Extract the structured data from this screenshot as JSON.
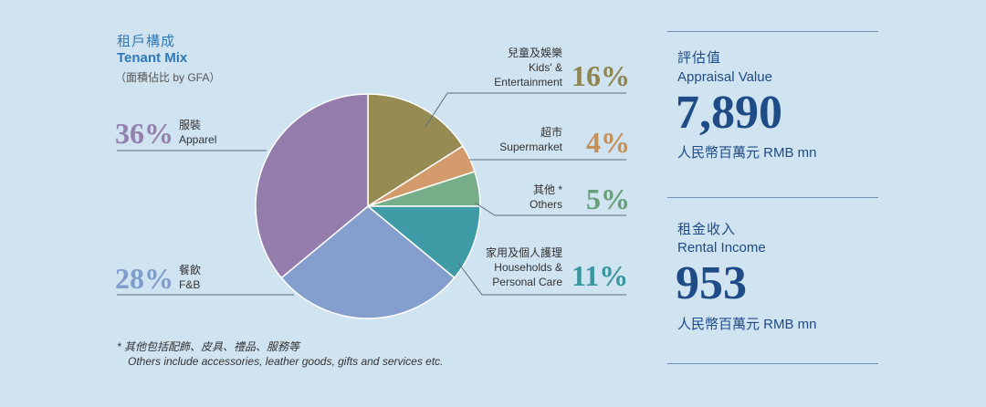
{
  "header": {
    "title_cn": "租戶構成",
    "title_en": "Tenant Mix",
    "subtitle": "（面積佔比 by GFA）"
  },
  "chart_data": {
    "type": "pie",
    "title": "Tenant Mix",
    "slices": [
      {
        "cn": "兒童及娛樂",
        "en": [
          "Kids' &",
          "Entertainment"
        ],
        "pct_label": "16%",
        "value": 16,
        "color": "#968b53",
        "label_color": "#8f8550"
      },
      {
        "cn": "超市",
        "en": [
          "Supermarket"
        ],
        "pct_label": "4%",
        "value": 4,
        "color": "#d39a6c",
        "label_color": "#c58f58"
      },
      {
        "cn": "其他 *",
        "en": [
          "Others"
        ],
        "pct_label": "5%",
        "value": 5,
        "color": "#78ad8a",
        "label_color": "#679f78"
      },
      {
        "cn": "家用及個人護理",
        "en": [
          "Households &",
          "Personal Care"
        ],
        "pct_label": "11%",
        "value": 11,
        "color": "#3f9ba6",
        "label_color": "#3a96a0"
      },
      {
        "cn": "餐飲",
        "en": [
          "F&B"
        ],
        "pct_label": "28%",
        "value": 28,
        "color": "#849fcd",
        "label_color": "#7e9ccc"
      },
      {
        "cn": "服裝",
        "en": [
          "Apparel"
        ],
        "pct_label": "36%",
        "value": 36,
        "color": "#947cad",
        "label_color": "#9480ad"
      }
    ]
  },
  "notes": {
    "cn": "*  其他包括配飾、皮具、禮品、服務等",
    "en": "Others include accessories, leather goods, gifts and services etc."
  },
  "kpis": [
    {
      "cn": "評估值",
      "en": "Appraisal Value",
      "value": "7,890",
      "unit": "人民幣百萬元 RMB mn"
    },
    {
      "cn": "租金收入",
      "en": "Rental Income",
      "value": "953",
      "unit": "人民幣百萬元 RMB mn"
    }
  ]
}
